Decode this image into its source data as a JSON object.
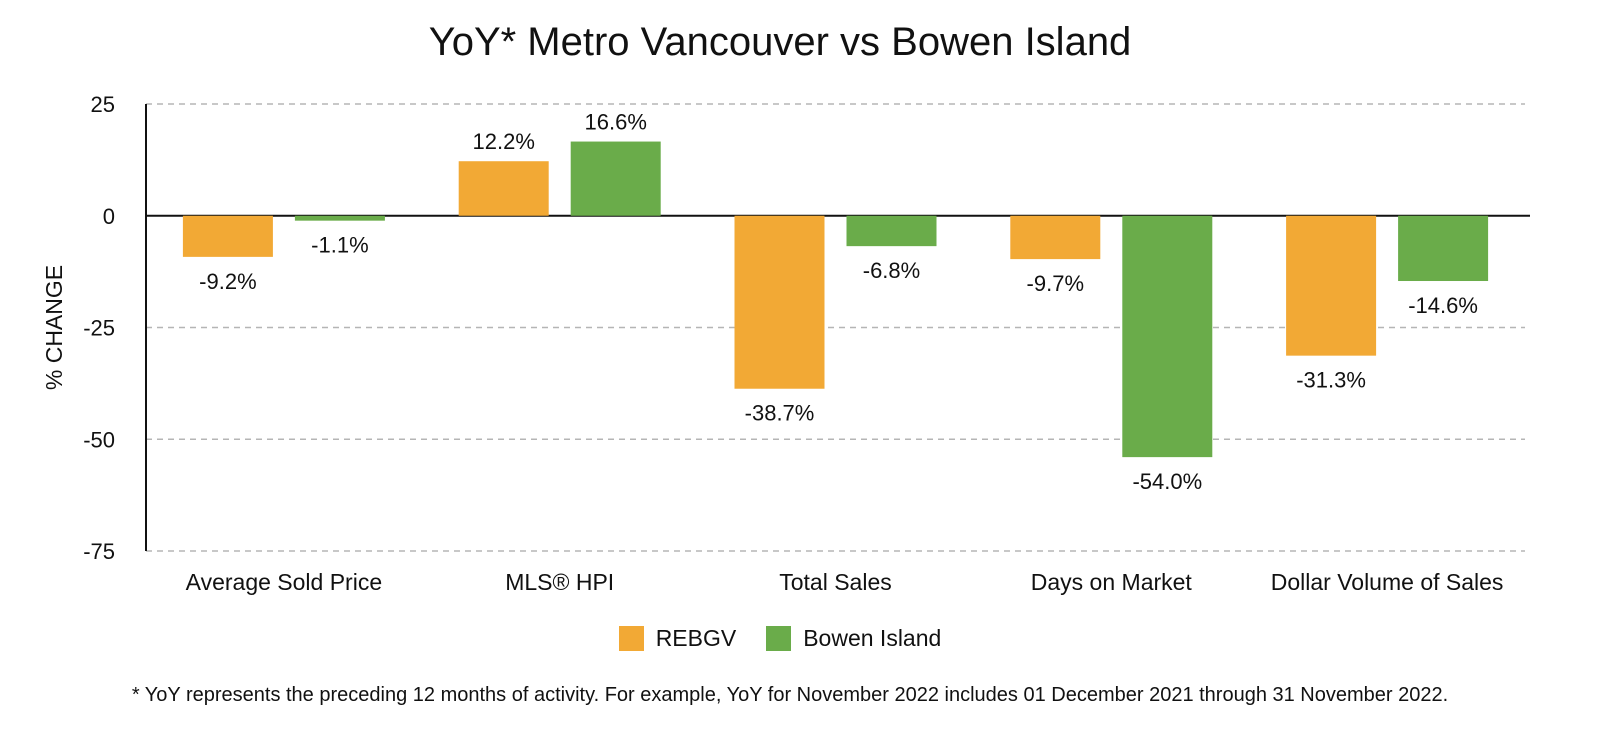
{
  "chart_data": {
    "type": "bar",
    "title": "YoY* Metro Vancouver vs Bowen Island",
    "ylabel": "% CHANGE",
    "xlabel": "",
    "ylim": [
      -75,
      25
    ],
    "yticks": [
      25,
      0,
      -25,
      -50,
      -75
    ],
    "grid": true,
    "legend_position": "bottom",
    "categories": [
      "Average Sold Price",
      "MLS® HPI",
      "Total Sales",
      "Days on Market",
      "Dollar Volume of Sales"
    ],
    "series": [
      {
        "name": "REBGV",
        "color": "#F2A935",
        "values": [
          -9.2,
          12.2,
          -38.7,
          -9.7,
          -31.3
        ],
        "labels": [
          "-9.2%",
          "12.2%",
          "-38.7%",
          "-9.7%",
          "-31.3%"
        ]
      },
      {
        "name": "Bowen Island",
        "color": "#6AAC4A",
        "values": [
          -1.1,
          16.6,
          -6.8,
          -54.0,
          -14.6
        ],
        "labels": [
          "-1.1%",
          "16.6%",
          "-6.8%",
          "-54.0%",
          "-14.6%"
        ]
      }
    ],
    "footnote": "* YoY represents the preceding 12 months of activity. For example, YoY for November 2022 includes 01 December 2021 through 31 November 2022."
  }
}
